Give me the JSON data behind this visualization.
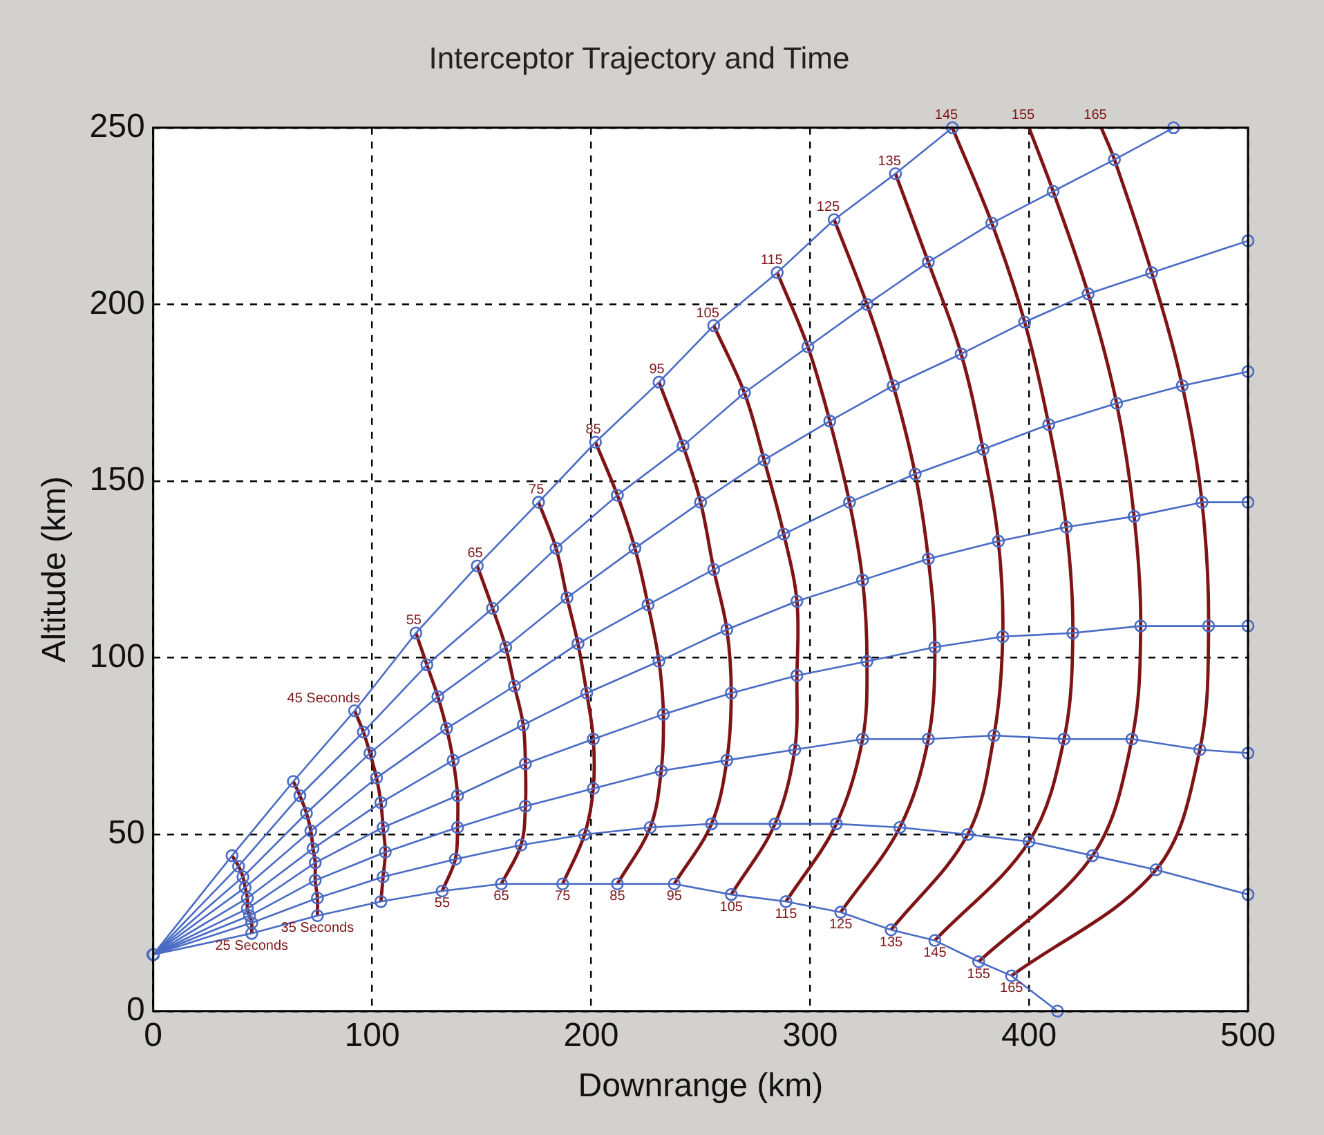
{
  "chart_data": {
    "type": "line",
    "title": "Interceptor Trajectory and Time",
    "xlabel": "Downrange (km)",
    "ylabel": "Altitude (km)",
    "xlim": [
      0,
      500
    ],
    "xticks": [
      0,
      100,
      200,
      300,
      400,
      500
    ],
    "ylim": [
      0,
      250
    ],
    "yticks": [
      0,
      50,
      100,
      150,
      200,
      250
    ],
    "grid": true,
    "series": [
      {
        "color": "#4a6bc4",
        "marker": "circle",
        "x": [
          0,
          36,
          64,
          92,
          120,
          148,
          176,
          202,
          231,
          256,
          285,
          311,
          339,
          365
        ],
        "values": [
          16,
          44,
          65,
          85,
          107,
          126,
          144,
          161,
          178,
          194,
          209,
          224,
          237,
          250
        ]
      },
      {
        "color": "#4a6bc4",
        "marker": "circle",
        "x": [
          0,
          39,
          67,
          96,
          125,
          155,
          184,
          212,
          242,
          270,
          299,
          326,
          354,
          383,
          411,
          439,
          466
        ],
        "values": [
          16,
          41,
          61,
          79,
          98,
          114,
          131,
          146,
          160,
          175,
          188,
          200,
          212,
          223,
          232,
          241,
          250
        ]
      },
      {
        "color": "#4a6bc4",
        "marker": "circle",
        "x": [
          0,
          41,
          70,
          99,
          130,
          161,
          189,
          220,
          250,
          279,
          309,
          338,
          369,
          398,
          427,
          456,
          500
        ],
        "values": [
          16,
          38,
          56,
          73,
          89,
          103,
          117,
          131,
          144,
          156,
          167,
          177,
          186,
          195,
          203,
          209,
          218
        ]
      },
      {
        "color": "#4a6bc4",
        "marker": "circle",
        "x": [
          0,
          42,
          72,
          102,
          134,
          165,
          194,
          226,
          256,
          288,
          318,
          348,
          379,
          409,
          440,
          470,
          500
        ],
        "values": [
          16,
          35,
          51,
          66,
          80,
          92,
          104,
          115,
          125,
          135,
          144,
          152,
          159,
          166,
          172,
          177,
          181
        ]
      },
      {
        "color": "#4a6bc4",
        "marker": "circle",
        "x": [
          0,
          43,
          73,
          104,
          137,
          169,
          198,
          231,
          262,
          294,
          324,
          354,
          386,
          417,
          448,
          479,
          500
        ],
        "values": [
          16,
          32,
          46,
          59,
          71,
          81,
          90,
          99,
          108,
          116,
          122,
          128,
          133,
          137,
          140,
          144,
          144
        ]
      },
      {
        "color": "#4a6bc4",
        "marker": "circle",
        "x": [
          0,
          43,
          74,
          105,
          139,
          170,
          201,
          233,
          264,
          294,
          326,
          357,
          388,
          420,
          451,
          482,
          500
        ],
        "values": [
          16,
          29,
          42,
          52,
          61,
          70,
          77,
          84,
          90,
          95,
          99,
          103,
          106,
          107,
          109,
          109,
          109
        ]
      },
      {
        "color": "#4a6bc4",
        "marker": "circle",
        "x": [
          0,
          44,
          74,
          106,
          139,
          170,
          201,
          232,
          262,
          293,
          324,
          354,
          384,
          416,
          447,
          478,
          500
        ],
        "values": [
          16,
          27,
          37,
          45,
          52,
          58,
          63,
          68,
          71,
          74,
          77,
          77,
          78,
          77,
          77,
          74,
          73
        ]
      },
      {
        "color": "#4a6bc4",
        "marker": "circle",
        "x": [
          0,
          45,
          75,
          105,
          138,
          168,
          197,
          227,
          255,
          284,
          312,
          341,
          372,
          400,
          429,
          458,
          500
        ],
        "values": [
          16,
          25,
          32,
          38,
          43,
          47,
          50,
          52,
          53,
          53,
          53,
          52,
          50,
          48,
          44,
          40,
          33
        ]
      },
      {
        "color": "#4a6bc4",
        "marker": "circle",
        "x": [
          0,
          45,
          75,
          104,
          132,
          159,
          187,
          212,
          238,
          264,
          289,
          314,
          337,
          357,
          377,
          392,
          413
        ],
        "values": [
          16,
          22,
          27,
          31,
          34,
          36,
          36,
          36,
          36,
          33,
          31,
          28,
          23,
          20,
          14,
          10,
          0
        ]
      },
      {
        "color": "#7f1416",
        "marker": "none",
        "x": [
          36,
          39,
          41,
          42,
          43,
          43,
          44,
          45,
          45
        ],
        "values": [
          44,
          41,
          38,
          35,
          32,
          29,
          27,
          25,
          22
        ]
      },
      {
        "color": "#7f1416",
        "marker": "none",
        "x": [
          64,
          67,
          70,
          72,
          73,
          74,
          74,
          75,
          75
        ],
        "values": [
          65,
          61,
          56,
          51,
          46,
          42,
          37,
          32,
          27
        ]
      },
      {
        "color": "#7f1416",
        "marker": "none",
        "x": [
          92,
          96,
          99,
          102,
          104,
          105,
          106,
          105,
          104
        ],
        "values": [
          85,
          79,
          73,
          66,
          59,
          52,
          45,
          38,
          31
        ]
      },
      {
        "color": "#7f1416",
        "marker": "none",
        "x": [
          120,
          125,
          130,
          134,
          137,
          139,
          139,
          138,
          132
        ],
        "values": [
          107,
          98,
          89,
          80,
          71,
          61,
          52,
          43,
          34
        ]
      },
      {
        "color": "#7f1416",
        "marker": "none",
        "x": [
          148,
          155,
          161,
          165,
          169,
          170,
          170,
          168,
          159
        ],
        "values": [
          126,
          114,
          103,
          92,
          81,
          70,
          58,
          47,
          36
        ]
      },
      {
        "color": "#7f1416",
        "marker": "none",
        "x": [
          176,
          184,
          189,
          194,
          198,
          201,
          201,
          197,
          187
        ],
        "values": [
          144,
          131,
          117,
          104,
          90,
          77,
          63,
          50,
          36
        ]
      },
      {
        "color": "#7f1416",
        "marker": "none",
        "x": [
          202,
          212,
          220,
          226,
          231,
          233,
          232,
          227,
          212
        ],
        "values": [
          161,
          146,
          131,
          115,
          99,
          84,
          68,
          52,
          36
        ]
      },
      {
        "color": "#7f1416",
        "marker": "none",
        "x": [
          231,
          242,
          250,
          256,
          262,
          264,
          262,
          255,
          238
        ],
        "values": [
          178,
          160,
          144,
          125,
          108,
          90,
          71,
          53,
          36
        ]
      },
      {
        "color": "#7f1416",
        "marker": "none",
        "x": [
          256,
          270,
          279,
          288,
          294,
          294,
          293,
          284,
          264
        ],
        "values": [
          194,
          175,
          156,
          135,
          116,
          95,
          74,
          53,
          33
        ]
      },
      {
        "color": "#7f1416",
        "marker": "none",
        "x": [
          285,
          299,
          309,
          318,
          324,
          326,
          324,
          312,
          289
        ],
        "values": [
          209,
          188,
          167,
          144,
          122,
          99,
          77,
          53,
          31
        ]
      },
      {
        "color": "#7f1416",
        "marker": "none",
        "x": [
          311,
          326,
          338,
          348,
          354,
          357,
          354,
          341,
          314
        ],
        "values": [
          224,
          200,
          177,
          152,
          128,
          103,
          77,
          52,
          28
        ]
      },
      {
        "color": "#7f1416",
        "marker": "none",
        "x": [
          339,
          354,
          369,
          379,
          386,
          388,
          384,
          372,
          337
        ],
        "values": [
          237,
          212,
          186,
          159,
          133,
          106,
          78,
          50,
          23
        ]
      },
      {
        "color": "#7f1416",
        "marker": "none",
        "x": [
          365,
          383,
          398,
          409,
          417,
          420,
          416,
          400,
          357
        ],
        "values": [
          250,
          223,
          195,
          166,
          137,
          107,
          77,
          48,
          20
        ]
      },
      {
        "color": "#7f1416",
        "marker": "none",
        "x": [
          400,
          411,
          427,
          440,
          448,
          451,
          447,
          429,
          377
        ],
        "values": [
          250,
          232,
          203,
          172,
          140,
          109,
          77,
          44,
          14
        ]
      },
      {
        "color": "#7f1416",
        "marker": "none",
        "x": [
          433,
          439,
          456,
          470,
          479,
          482,
          478,
          458,
          392
        ],
        "values": [
          250,
          241,
          209,
          177,
          144,
          109,
          74,
          40,
          10
        ]
      }
    ],
    "annotations": [
      {
        "text": "45 Seconds",
        "x": 92,
        "y": 85
      },
      {
        "text": "55",
        "x": 120,
        "y": 107
      },
      {
        "text": "65",
        "x": 148,
        "y": 126
      },
      {
        "text": "75",
        "x": 176,
        "y": 144
      },
      {
        "text": "85",
        "x": 202,
        "y": 161
      },
      {
        "text": "95",
        "x": 231,
        "y": 178
      },
      {
        "text": "105",
        "x": 256,
        "y": 194
      },
      {
        "text": "115",
        "x": 285,
        "y": 209
      },
      {
        "text": "125",
        "x": 311,
        "y": 224
      },
      {
        "text": "135",
        "x": 339,
        "y": 237
      },
      {
        "text": "145",
        "x": 365,
        "y": 250
      },
      {
        "text": "155",
        "x": 400,
        "y": 250
      },
      {
        "text": "165",
        "x": 433,
        "y": 250
      },
      {
        "text": "25 Seconds",
        "x": 45,
        "y": 22
      },
      {
        "text": "35 Seconds",
        "x": 75,
        "y": 27
      },
      {
        "text": "55",
        "x": 132,
        "y": 34
      },
      {
        "text": "65",
        "x": 159,
        "y": 36
      },
      {
        "text": "75",
        "x": 187,
        "y": 36
      },
      {
        "text": "85",
        "x": 212,
        "y": 36
      },
      {
        "text": "95",
        "x": 238,
        "y": 36
      },
      {
        "text": "105",
        "x": 264,
        "y": 33
      },
      {
        "text": "115",
        "x": 289,
        "y": 31
      },
      {
        "text": "125",
        "x": 314,
        "y": 28
      },
      {
        "text": "135",
        "x": 337,
        "y": 23
      },
      {
        "text": "145",
        "x": 357,
        "y": 20
      },
      {
        "text": "155",
        "x": 377,
        "y": 14
      },
      {
        "text": "165",
        "x": 392,
        "y": 10
      }
    ]
  }
}
